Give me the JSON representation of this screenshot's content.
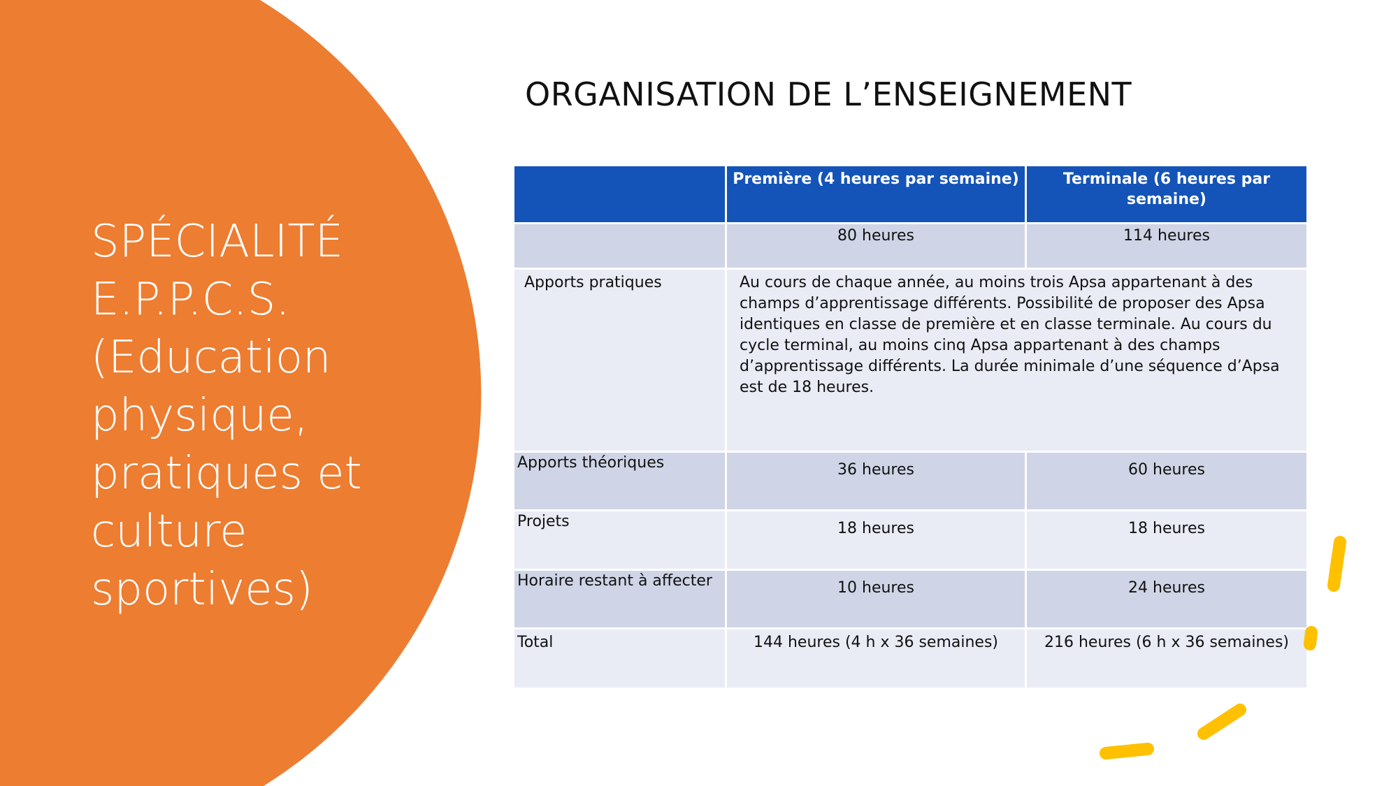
{
  "side_title": "SPÉCIALITÉ E.P.P.C.S. (Education physique, pratiques et culture sportives)",
  "slide_title": "ORGANISATION DE L’ENSEIGNEMENT",
  "colors": {
    "orange": "#ED7D31",
    "header_blue": "#1454B8",
    "row_dark": "#CFD5E6",
    "row_light": "#E9EBF5",
    "accent_yellow": "#FFC000"
  },
  "table": {
    "headers": [
      "",
      "Première (4 heures par semaine)",
      "Terminale (6 heures par semaine)"
    ],
    "rows": [
      {
        "label": "",
        "premiere": "80 heures",
        "terminale": "114 heures"
      },
      {
        "label": "Apports pratiques",
        "merged": "Au cours de chaque année, au moins trois Apsa appartenant à des champs d’apprentissage différents. Possibilité de proposer des Apsa identiques en classe de première et en classe terminale. Au cours du cycle terminal, au moins cinq Apsa appartenant à des champs d’apprentissage différents. La durée minimale d’une séquence d’Apsa est de 18 heures."
      },
      {
        "label": "Apports théoriques",
        "premiere": "36 heures",
        "terminale": "60 heures"
      },
      {
        "label": "Projets",
        "premiere": "18 heures",
        "terminale": "18 heures"
      },
      {
        "label": "Horaire restant à affecter",
        "premiere": "10 heures",
        "terminale": "24 heures"
      },
      {
        "label": "Total",
        "premiere": "144 heures (4 h x 36 semaines)",
        "terminale": "216 heures (6 h x 36 semaines)"
      }
    ]
  }
}
